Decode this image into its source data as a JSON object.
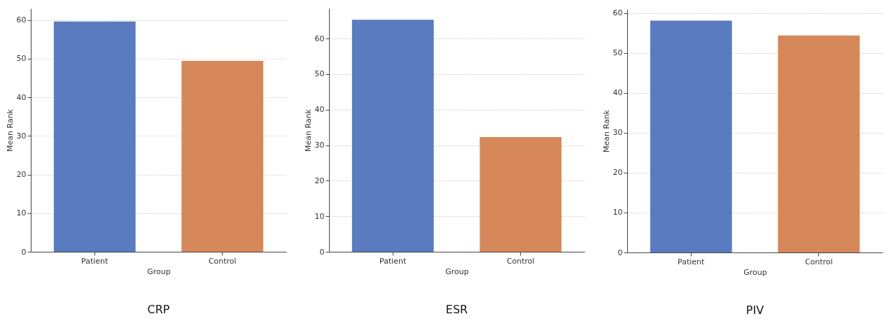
{
  "chart_data": [
    {
      "type": "bar",
      "title": "CRP",
      "xlabel": "Group",
      "ylabel": "Mean Rank",
      "categories": [
        "Patient",
        "Control"
      ],
      "colors": [
        "#5a7bbf",
        "#d6885a"
      ],
      "values": [
        59.6,
        49.4
      ],
      "ylim": [
        0,
        63
      ],
      "yticks": [
        0,
        10,
        20,
        30,
        40,
        50,
        60
      ],
      "grid": "y"
    },
    {
      "type": "bar",
      "title": "ESR",
      "xlabel": "Group",
      "ylabel": "Mean Rank",
      "categories": [
        "Patient",
        "Control"
      ],
      "colors": [
        "#5a7bbf",
        "#d6885a"
      ],
      "values": [
        65.3,
        32.3
      ],
      "ylim": [
        0,
        68.5
      ],
      "yticks": [
        0,
        10,
        20,
        30,
        40,
        50,
        60
      ],
      "grid": "y"
    },
    {
      "type": "bar",
      "title": "PIV",
      "xlabel": "Group",
      "ylabel": "Mean Rank",
      "categories": [
        "Patient",
        "Control"
      ],
      "colors": [
        "#5a7bbf",
        "#d6885a"
      ],
      "values": [
        58.1,
        54.4
      ],
      "ylim": [
        0,
        61
      ],
      "yticks": [
        0,
        10,
        20,
        30,
        40,
        50,
        60
      ],
      "grid": "y"
    }
  ]
}
